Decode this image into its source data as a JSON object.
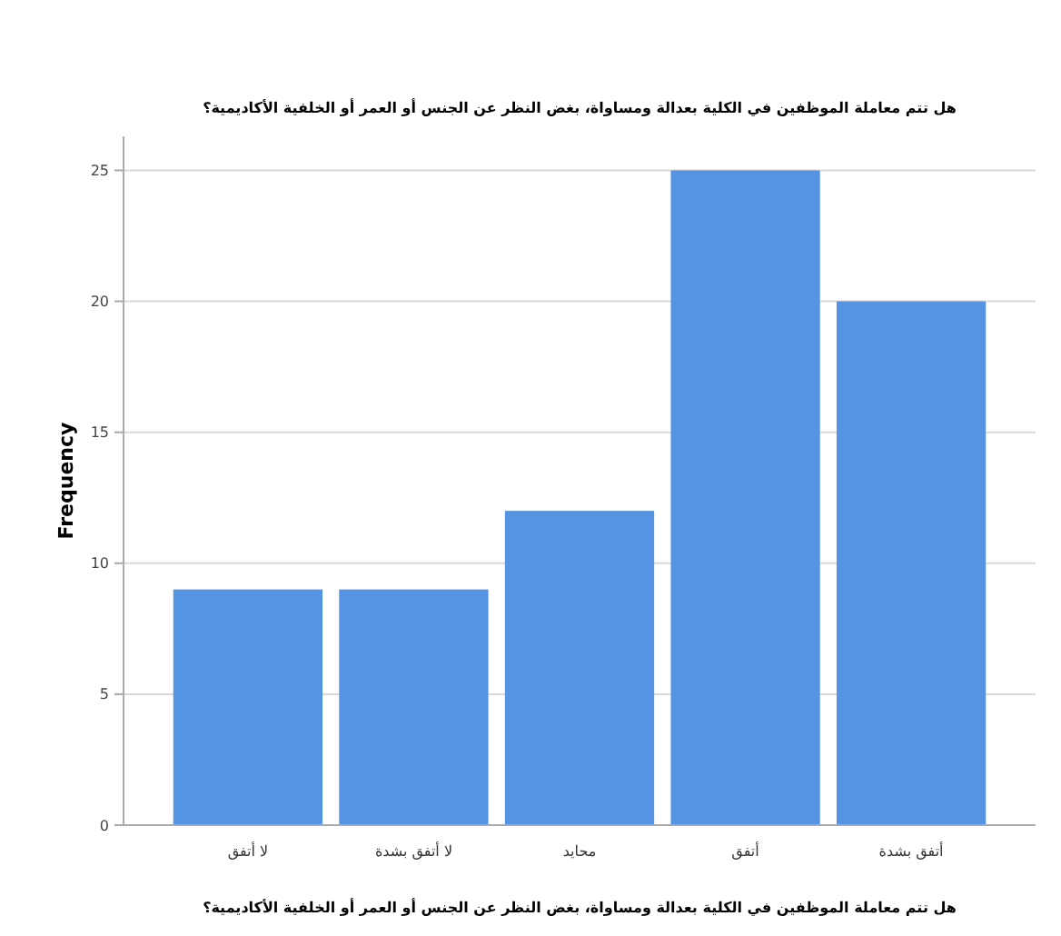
{
  "chart_data": {
    "type": "bar",
    "title": "هل تتم معاملة الموظفين في الكلية بعدالة ومساواة، بغض النظر عن الجنس أو العمر أو الخلفية الأكاديمية؟",
    "xlabel": "هل تتم معاملة الموظفين في الكلية بعدالة ومساواة، بغض النظر عن الجنس أو العمر أو الخلفية الأكاديمية؟",
    "ylabel": "Frequency",
    "categories": [
      "لا أتفق",
      "لا أتفق بشدة",
      "محايد",
      "أتفق",
      "أتفق بشدة"
    ],
    "values": [
      9,
      9,
      12,
      25,
      20
    ],
    "color": "#5594e2",
    "ylim": [
      0,
      26.3
    ],
    "yticks": [
      0,
      5,
      10,
      15,
      20,
      25
    ],
    "grid": "y"
  }
}
